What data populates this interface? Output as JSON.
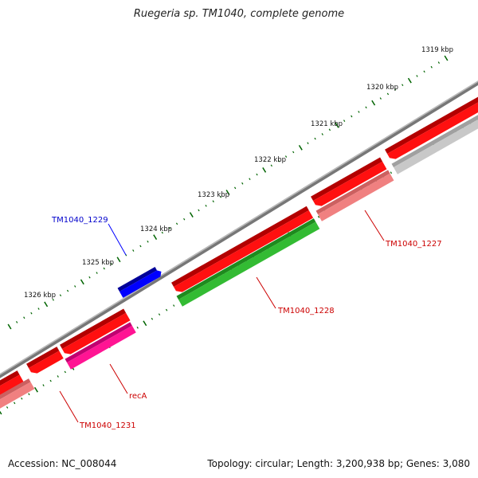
{
  "title": "Ruegeria sp. TM1040, complete genome",
  "footer": {
    "accession": "Accession: NC_008044",
    "summary": "Topology: circular; Length: 3,200,938 bp; Genes: 3,080"
  },
  "scale": {
    "labels": [
      "1319 kbp",
      "1320 kbp",
      "1321 kbp",
      "1322 kbp",
      "1323 kbp",
      "1324 kbp",
      "1325 kbp",
      "1326 kbp"
    ]
  },
  "genes": [
    {
      "id": "TM1040_1229",
      "label": "TM1040_1229",
      "color": "#0000ff",
      "label_color": "#0000cc"
    },
    {
      "id": "TM1040_1228",
      "label": "TM1040_1228",
      "color": "#33bb33",
      "label_color": "#cc0000"
    },
    {
      "id": "TM1040_1227",
      "label": "TM1040_1227",
      "color": "#f08080",
      "label_color": "#cc0000"
    },
    {
      "id": "recA",
      "label": "recA",
      "color": "#ff1493",
      "label_color": "#cc0000"
    },
    {
      "id": "TM1040_1231",
      "label": "TM1040_1231",
      "color": "#f08080",
      "label_color": "#cc0000"
    }
  ],
  "colors": {
    "backbone": "#888888",
    "cds_strand": "#ff0000",
    "ticks": "#006400",
    "other_gene": "#c8c8c8"
  }
}
